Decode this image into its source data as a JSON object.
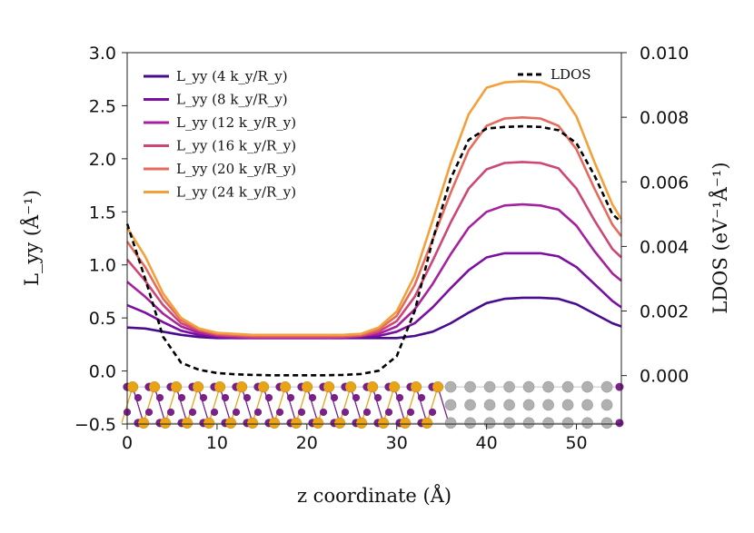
{
  "chart_data": {
    "type": "line",
    "title": "",
    "xlabel": "z coordinate (Å)",
    "ylabel": "L_yy (Å⁻¹)",
    "ylabel_right": "LDOS (eV⁻¹Å⁻¹)",
    "xlim": [
      0,
      55
    ],
    "ylim": [
      -0.5,
      3.0
    ],
    "ylim_right": [
      -0.0015,
      0.01
    ],
    "xticks": [
      "0",
      "10",
      "20",
      "30",
      "40",
      "50"
    ],
    "yticks": [
      "−0.5",
      "0.0",
      "0.5",
      "1.0",
      "1.5",
      "2.0",
      "2.5",
      "3.0"
    ],
    "yticks_right": [
      "0.000",
      "0.002",
      "0.004",
      "0.006",
      "0.008",
      "0.010"
    ],
    "grid": false,
    "legend_position": "top-left",
    "x": [
      0,
      2,
      4,
      6,
      8,
      10,
      12,
      14,
      16,
      18,
      20,
      22,
      24,
      26,
      28,
      30,
      32,
      34,
      36,
      38,
      40,
      42,
      44,
      46,
      48,
      50,
      52,
      54,
      55
    ],
    "series": [
      {
        "name": "L_yy (4 k_y/R_y)",
        "color": "#4a0c8f",
        "values": [
          0.41,
          0.4,
          0.37,
          0.34,
          0.32,
          0.31,
          0.31,
          0.31,
          0.31,
          0.31,
          0.31,
          0.31,
          0.31,
          0.31,
          0.31,
          0.31,
          0.33,
          0.37,
          0.45,
          0.55,
          0.64,
          0.68,
          0.69,
          0.69,
          0.68,
          0.63,
          0.54,
          0.45,
          0.42
        ]
      },
      {
        "name": "L_yy (8 k_y/R_y)",
        "color": "#7b0fa0",
        "values": [
          0.62,
          0.55,
          0.46,
          0.38,
          0.34,
          0.32,
          0.31,
          0.31,
          0.31,
          0.31,
          0.31,
          0.31,
          0.31,
          0.32,
          0.33,
          0.37,
          0.45,
          0.6,
          0.78,
          0.95,
          1.07,
          1.11,
          1.11,
          1.11,
          1.08,
          0.98,
          0.82,
          0.66,
          0.6
        ]
      },
      {
        "name": "L_yy (12 k_y/R_y)",
        "color": "#a5219e",
        "values": [
          0.84,
          0.7,
          0.54,
          0.42,
          0.36,
          0.33,
          0.32,
          0.31,
          0.31,
          0.31,
          0.31,
          0.31,
          0.32,
          0.33,
          0.35,
          0.42,
          0.58,
          0.82,
          1.1,
          1.35,
          1.5,
          1.56,
          1.57,
          1.56,
          1.52,
          1.37,
          1.13,
          0.92,
          0.85
        ]
      },
      {
        "name": "L_yy (16 k_y/R_y)",
        "color": "#cc4778",
        "values": [
          1.05,
          0.85,
          0.62,
          0.45,
          0.38,
          0.34,
          0.33,
          0.32,
          0.32,
          0.32,
          0.32,
          0.32,
          0.32,
          0.33,
          0.37,
          0.47,
          0.7,
          1.04,
          1.4,
          1.72,
          1.9,
          1.96,
          1.97,
          1.96,
          1.91,
          1.72,
          1.42,
          1.15,
          1.07
        ]
      },
      {
        "name": "L_yy (20 k_y/R_y)",
        "color": "#e56b5d",
        "values": [
          1.22,
          0.98,
          0.68,
          0.48,
          0.39,
          0.35,
          0.34,
          0.33,
          0.33,
          0.33,
          0.33,
          0.33,
          0.33,
          0.34,
          0.39,
          0.52,
          0.81,
          1.24,
          1.68,
          2.08,
          2.31,
          2.38,
          2.39,
          2.38,
          2.31,
          2.09,
          1.72,
          1.38,
          1.27
        ]
      },
      {
        "name": "L_yy (24 k_y/R_y)",
        "color": "#f4a03a",
        "values": [
          1.35,
          1.08,
          0.73,
          0.5,
          0.4,
          0.36,
          0.35,
          0.34,
          0.34,
          0.34,
          0.34,
          0.34,
          0.34,
          0.35,
          0.41,
          0.56,
          0.9,
          1.42,
          1.96,
          2.42,
          2.67,
          2.72,
          2.73,
          2.72,
          2.65,
          2.4,
          1.97,
          1.57,
          1.43
        ]
      }
    ],
    "ldos_series": {
      "name": "LDOS",
      "color": "#000000",
      "style": "dashed",
      "x": [
        0,
        2,
        4,
        6,
        8,
        10,
        12,
        14,
        16,
        18,
        20,
        22,
        24,
        26,
        28,
        30,
        32,
        34,
        36,
        38,
        40,
        42,
        44,
        46,
        48,
        50,
        52,
        54,
        55
      ],
      "values": [
        0.0047,
        0.003,
        0.0012,
        0.0004,
        0.00018,
        8e-05,
        4e-05,
        2e-05,
        1e-05,
        1e-05,
        1e-05,
        1e-05,
        2e-05,
        5e-05,
        0.00015,
        0.0006,
        0.002,
        0.0042,
        0.0061,
        0.0073,
        0.00765,
        0.0077,
        0.00772,
        0.0077,
        0.0076,
        0.0072,
        0.0062,
        0.005,
        0.00475
      ]
    },
    "inset": {
      "description_icon": "atomic-structure",
      "colors": {
        "gold": "#e8a317",
        "purple": "#7a1f8c",
        "gray": "#b0b0b0"
      }
    }
  }
}
